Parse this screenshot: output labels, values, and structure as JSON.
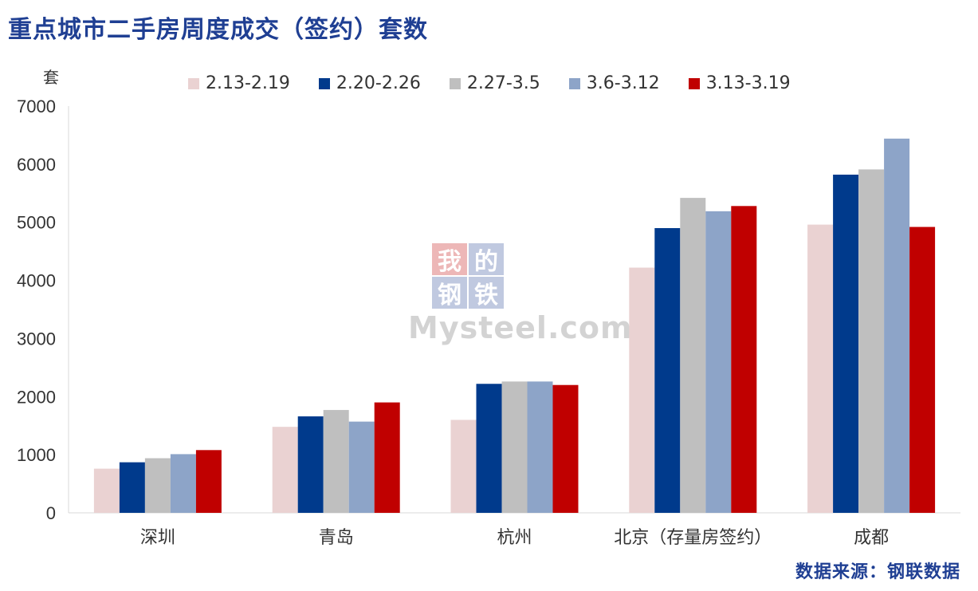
{
  "title": "重点城市二手房周度成交（签约）套数",
  "source": "数据来源：钢联数据",
  "watermark": {
    "chars": [
      "我",
      "的",
      "钢",
      "铁"
    ],
    "text": "Mysteel.com"
  },
  "chart_data": {
    "type": "bar",
    "ylabel": "套",
    "ylim": [
      0,
      7000
    ],
    "yticks": [
      0,
      1000,
      2000,
      3000,
      4000,
      5000,
      6000,
      7000
    ],
    "categories": [
      "深圳",
      "青岛",
      "杭州",
      "北京（存量房签约）",
      "成都"
    ],
    "series": [
      {
        "name": "2.13-2.19",
        "color": "#ead2d2",
        "values": [
          760,
          1480,
          1600,
          4220,
          4960
        ]
      },
      {
        "name": "2.20-2.26",
        "color": "#003a8c",
        "values": [
          870,
          1660,
          2220,
          4900,
          5820
        ]
      },
      {
        "name": "2.27-3.5",
        "color": "#bfbfbf",
        "values": [
          940,
          1770,
          2260,
          5420,
          5910
        ]
      },
      {
        "name": "3.6-3.12",
        "color": "#8da4c8",
        "values": [
          1010,
          1570,
          2260,
          5190,
          6440
        ]
      },
      {
        "name": "3.13-3.19",
        "color": "#c00000",
        "values": [
          1080,
          1900,
          2200,
          5280,
          4920
        ]
      }
    ],
    "grid": false,
    "legend": "top"
  }
}
